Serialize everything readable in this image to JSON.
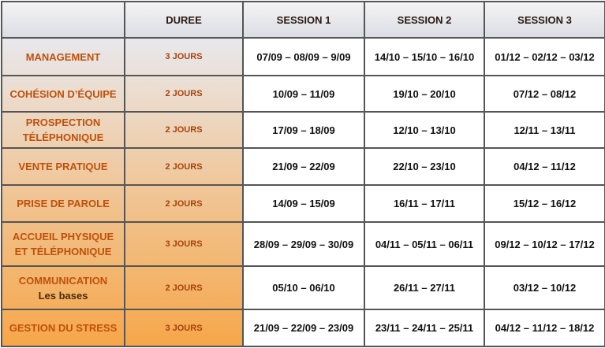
{
  "table": {
    "header": [
      "DUREE",
      "SESSION 1",
      "SESSION 2",
      "SESSION 3"
    ],
    "rows": [
      {
        "name": [
          "MANAGEMENT"
        ],
        "duree": "3 JOURS",
        "sessions": [
          "07/09 – 08/09 – 9/09",
          "14/10 – 15/10 – 16/10",
          "01/12 – 02/12 – 03/12"
        ]
      },
      {
        "name": [
          "COHÉSION D’ÉQUIPE"
        ],
        "duree": "2 JOURS",
        "sessions": [
          "10/09 – 11/09",
          "19/10 – 20/10",
          "07/12 – 08/12"
        ]
      },
      {
        "name": [
          "PROSPECTION",
          "TÉLÉPHONIQUE"
        ],
        "duree": "2 JOURS",
        "sessions": [
          "17/09 – 18/09",
          "12/10 – 13/10",
          "12/11 – 13/11"
        ]
      },
      {
        "name": [
          "VENTE PRATIQUE"
        ],
        "duree": "2 JOURS",
        "sessions": [
          "21/09 – 22/09",
          "22/10 – 23/10",
          "04/12 – 11/12"
        ]
      },
      {
        "name": [
          "PRISE DE PAROLE"
        ],
        "duree": "2 JOURS",
        "sessions": [
          "14/09 – 15/09",
          "16/11 – 17/11",
          "15/12 – 16/12"
        ]
      },
      {
        "name": [
          "ACCUEIL PHYSIQUE",
          "ET TÉLÉPHONIQUE"
        ],
        "duree": "3 JOURS",
        "sessions": [
          "28/09 – 29/09 – 30/09",
          "04/11 – 05/11 – 06/11",
          "09/12 – 10/12 – 17/12"
        ]
      },
      {
        "name": [
          "COMMUNICATION"
        ],
        "subtitle": "Les bases",
        "duree": "2 JOURS",
        "sessions": [
          "05/10 – 06/10",
          "26/11 – 27/11",
          "03/12 – 10/12"
        ]
      },
      {
        "name": [
          "GESTION DU STRESS"
        ],
        "duree": "3 JOURS",
        "sessions": [
          "21/09 – 22/09 – 23/09",
          "23/11 – 24/11 – 25/11",
          "04/12 – 11/12 – 18/12"
        ]
      }
    ]
  }
}
